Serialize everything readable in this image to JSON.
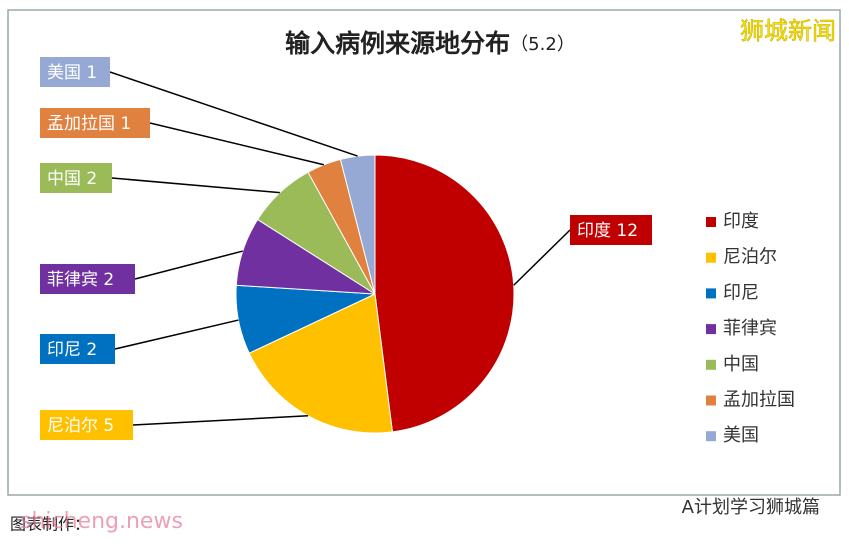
{
  "chart_data": {
    "type": "pie",
    "title": "输入病例来源地分布",
    "subtitle": "（5.2）",
    "categories": [
      "印度",
      "尼泊尔",
      "印尼",
      "菲律宾",
      "中国",
      "孟加拉国",
      "美国"
    ],
    "values": [
      12,
      5,
      2,
      2,
      2,
      1,
      1
    ],
    "colors": [
      "#c00000",
      "#ffc000",
      "#0070c0",
      "#7030a0",
      "#9bbb59",
      "#e0813f",
      "#95a9d4"
    ],
    "legend": "right"
  },
  "watermark": "狮城新闻",
  "footer": "图表制作：",
  "site": "shicheng.news",
  "brand": "A计划学习狮城篇"
}
